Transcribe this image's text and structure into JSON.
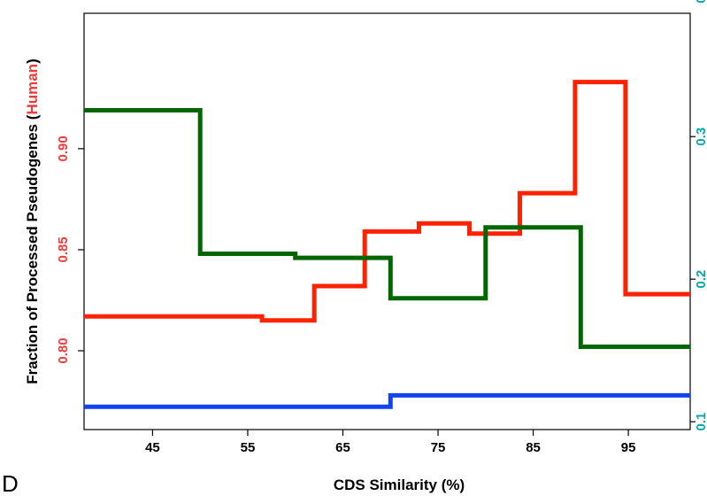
{
  "chart_data": {
    "type": "line",
    "step": true,
    "panel_label": "D",
    "xlabel": "CDS Similarity (%)",
    "ylabel": {
      "prefix": "Fraction of Processed Pseudogenes (",
      "highlight": "Human",
      "suffix": ")"
    },
    "xlim": [
      37.8,
      101.5
    ],
    "x_ticks": [
      "45",
      "55",
      "65",
      "75",
      "85",
      "95"
    ],
    "x_tick_values": [
      45,
      55,
      65,
      75,
      85,
      95
    ],
    "left_axis": {
      "ylim": [
        0.761,
        0.967
      ],
      "ticks": [
        "0.80",
        "0.85",
        "0.90"
      ],
      "tick_values": [
        0.8,
        0.85,
        0.9
      ],
      "color": "#ee3b3b"
    },
    "right_axis": {
      "ylim": [
        0.0945,
        0.3865
      ],
      "ticks": [
        "0.1",
        "0.2",
        "0.3",
        "0.4"
      ],
      "tick_values": [
        0.1,
        0.2,
        0.3,
        0.4
      ],
      "color": "#00aaaa"
    },
    "grid": false,
    "series": [
      {
        "axis": "left",
        "color": "#ff2200",
        "points": [
          [
            37.8,
            0.817
          ],
          [
            56.5,
            0.817
          ],
          [
            56.5,
            0.815
          ],
          [
            62,
            0.815
          ],
          [
            62,
            0.832
          ],
          [
            67.3,
            0.832
          ],
          [
            67.3,
            0.859
          ],
          [
            73,
            0.859
          ],
          [
            73,
            0.863
          ],
          [
            78.3,
            0.863
          ],
          [
            78.3,
            0.858
          ],
          [
            83.6,
            0.858
          ],
          [
            83.6,
            0.878
          ],
          [
            89.4,
            0.878
          ],
          [
            89.4,
            0.933
          ],
          [
            94.7,
            0.933
          ],
          [
            94.7,
            0.828
          ],
          [
            101.5,
            0.828
          ]
        ]
      },
      {
        "axis": "left",
        "color": "#006600",
        "points": [
          [
            37.8,
            0.919
          ],
          [
            50,
            0.919
          ],
          [
            50,
            0.848
          ],
          [
            60,
            0.848
          ],
          [
            60,
            0.846
          ],
          [
            70,
            0.846
          ],
          [
            70,
            0.826
          ],
          [
            80,
            0.826
          ],
          [
            80,
            0.861
          ],
          [
            90,
            0.861
          ],
          [
            90,
            0.802
          ],
          [
            101.5,
            0.802
          ]
        ]
      },
      {
        "axis": "right",
        "color": "#1144ee",
        "points": [
          [
            37.8,
            0.1105
          ],
          [
            70,
            0.1105
          ],
          [
            70,
            0.1185
          ],
          [
            101.5,
            0.1185
          ]
        ]
      }
    ]
  }
}
